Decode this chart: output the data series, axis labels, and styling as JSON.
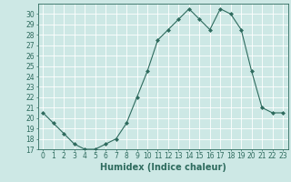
{
  "x": [
    0,
    1,
    2,
    3,
    4,
    5,
    6,
    7,
    8,
    9,
    10,
    11,
    12,
    13,
    14,
    15,
    16,
    17,
    18,
    19,
    20,
    21,
    22,
    23
  ],
  "y": [
    20.5,
    19.5,
    18.5,
    17.5,
    17.0,
    17.0,
    17.5,
    18.0,
    19.5,
    22.0,
    24.5,
    27.5,
    28.5,
    29.5,
    30.5,
    29.5,
    28.5,
    30.5,
    30.0,
    28.5,
    24.5,
    21.0,
    20.5,
    20.5
  ],
  "xlabel": "Humidex (Indice chaleur)",
  "ylabel": "",
  "ylim": [
    17,
    31
  ],
  "xlim": [
    -0.5,
    23.5
  ],
  "yticks": [
    17,
    18,
    19,
    20,
    21,
    22,
    23,
    24,
    25,
    26,
    27,
    28,
    29,
    30
  ],
  "xticks": [
    0,
    1,
    2,
    3,
    4,
    5,
    6,
    7,
    8,
    9,
    10,
    11,
    12,
    13,
    14,
    15,
    16,
    17,
    18,
    19,
    20,
    21,
    22,
    23
  ],
  "line_color": "#2e6b5e",
  "marker": "D",
  "marker_size": 2,
  "bg_color": "#cde8e5",
  "grid_color": "#ffffff",
  "label_fontsize": 7,
  "tick_fontsize": 5.5
}
